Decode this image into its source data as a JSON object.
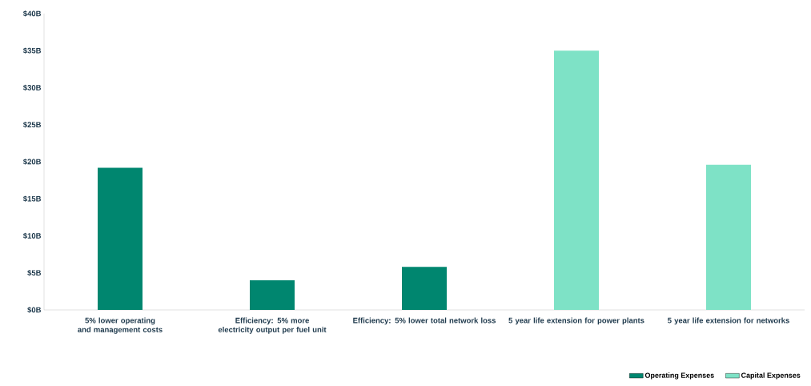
{
  "chart_data": {
    "type": "bar",
    "categories": [
      "5% lower operating and management costs",
      "Efficiency: 5% more electricity output per fuel unit",
      "Efficiency: 5% lower total network loss",
      "5 year life extension for power plants",
      "5 year life extension for networks"
    ],
    "series": [
      {
        "name": "Operating Expenses",
        "color": "#00866f",
        "values": [
          19.2,
          4.0,
          5.8,
          null,
          null
        ]
      },
      {
        "name": "Capital Expenses",
        "color": "#7ee2c6",
        "values": [
          null,
          null,
          null,
          35.0,
          19.6
        ]
      }
    ],
    "ylim": [
      0,
      40
    ],
    "yticks": [
      {
        "value": 0,
        "label": "$0B"
      },
      {
        "value": 5,
        "label": "$5B"
      },
      {
        "value": 10,
        "label": "$10B"
      },
      {
        "value": 15,
        "label": "$15B"
      },
      {
        "value": 20,
        "label": "$20B"
      },
      {
        "value": 25,
        "label": "$25B"
      },
      {
        "value": 30,
        "label": "$30B"
      },
      {
        "value": 35,
        "label": "$35B"
      },
      {
        "value": 40,
        "label": "$40B"
      }
    ],
    "grid": false,
    "legend": "bottom right"
  }
}
